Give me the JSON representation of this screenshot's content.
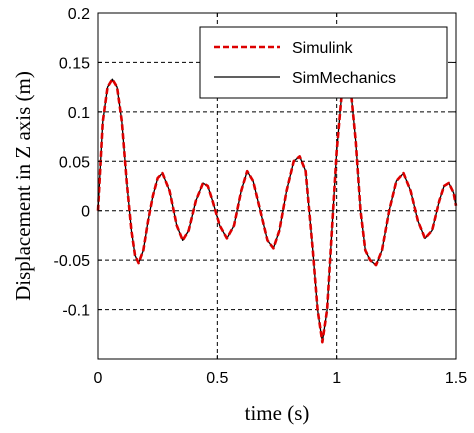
{
  "chart_data": {
    "type": "line",
    "title": "",
    "xlabel": "time (s)",
    "ylabel": "Displacement in Z axis  (m)",
    "xlim": [
      0,
      1.5
    ],
    "ylim": [
      -0.15,
      0.2
    ],
    "x_ticks": [
      0,
      0.5,
      1,
      1.5
    ],
    "x_tick_labels": [
      "0",
      "0.5",
      "1",
      "1.5"
    ],
    "y_ticks": [
      -0.1,
      -0.05,
      0,
      0.05,
      0.1,
      0.15,
      0.2
    ],
    "y_tick_labels": [
      "-0.1",
      "-0.05",
      "0",
      "0.05",
      "0.1",
      "0.15",
      "0.2"
    ],
    "grid": true,
    "grid_style": "dashed",
    "legend_position": "top-right",
    "series": [
      {
        "name": "Simulink",
        "color": "#dd0000",
        "line_style": "dashed",
        "x": [
          0,
          0.02,
          0.04,
          0.06,
          0.08,
          0.1,
          0.12,
          0.14,
          0.155,
          0.17,
          0.19,
          0.21,
          0.23,
          0.25,
          0.27,
          0.3,
          0.33,
          0.355,
          0.38,
          0.41,
          0.44,
          0.46,
          0.48,
          0.51,
          0.54,
          0.57,
          0.6,
          0.625,
          0.65,
          0.68,
          0.71,
          0.735,
          0.76,
          0.79,
          0.82,
          0.845,
          0.87,
          0.9,
          0.92,
          0.94,
          0.96,
          0.98,
          1.0,
          1.02,
          1.04,
          1.06,
          1.08,
          1.1,
          1.12,
          1.14,
          1.165,
          1.19,
          1.22,
          1.25,
          1.28,
          1.31,
          1.34,
          1.37,
          1.4,
          1.43,
          1.45,
          1.47,
          1.49,
          1.5
        ],
        "y": [
          0.0,
          0.09,
          0.125,
          0.133,
          0.125,
          0.09,
          0.03,
          -0.02,
          -0.045,
          -0.053,
          -0.04,
          -0.01,
          0.015,
          0.033,
          0.038,
          0.02,
          -0.015,
          -0.03,
          -0.02,
          0.01,
          0.028,
          0.025,
          0.01,
          -0.015,
          -0.028,
          -0.015,
          0.02,
          0.04,
          0.03,
          0.0,
          -0.03,
          -0.038,
          -0.02,
          0.02,
          0.05,
          0.055,
          0.04,
          -0.04,
          -0.1,
          -0.133,
          -0.1,
          -0.02,
          0.06,
          0.115,
          0.13,
          0.12,
          0.07,
          0.0,
          -0.04,
          -0.05,
          -0.055,
          -0.04,
          0.0,
          0.03,
          0.038,
          0.02,
          -0.01,
          -0.028,
          -0.02,
          0.01,
          0.025,
          0.028,
          0.018,
          0.005
        ]
      },
      {
        "name": "SimMechanics",
        "color": "#000000",
        "line_style": "solid",
        "x": [
          0,
          0.02,
          0.04,
          0.06,
          0.08,
          0.1,
          0.12,
          0.14,
          0.155,
          0.17,
          0.19,
          0.21,
          0.23,
          0.25,
          0.27,
          0.3,
          0.33,
          0.355,
          0.38,
          0.41,
          0.44,
          0.46,
          0.48,
          0.51,
          0.54,
          0.57,
          0.6,
          0.625,
          0.65,
          0.68,
          0.71,
          0.735,
          0.76,
          0.79,
          0.82,
          0.845,
          0.87,
          0.9,
          0.92,
          0.94,
          0.96,
          0.98,
          1.0,
          1.02,
          1.04,
          1.06,
          1.08,
          1.1,
          1.12,
          1.14,
          1.165,
          1.19,
          1.22,
          1.25,
          1.28,
          1.31,
          1.34,
          1.37,
          1.4,
          1.43,
          1.45,
          1.47,
          1.49,
          1.5
        ],
        "y": [
          0.0,
          0.09,
          0.125,
          0.133,
          0.125,
          0.09,
          0.03,
          -0.02,
          -0.045,
          -0.053,
          -0.04,
          -0.01,
          0.015,
          0.033,
          0.038,
          0.02,
          -0.015,
          -0.03,
          -0.02,
          0.01,
          0.028,
          0.025,
          0.01,
          -0.015,
          -0.028,
          -0.015,
          0.02,
          0.04,
          0.03,
          0.0,
          -0.03,
          -0.038,
          -0.02,
          0.02,
          0.05,
          0.055,
          0.04,
          -0.04,
          -0.1,
          -0.133,
          -0.1,
          -0.02,
          0.06,
          0.115,
          0.13,
          0.12,
          0.07,
          0.0,
          -0.04,
          -0.05,
          -0.055,
          -0.04,
          0.0,
          0.03,
          0.038,
          0.02,
          -0.01,
          -0.028,
          -0.02,
          0.01,
          0.025,
          0.028,
          0.018,
          0.005
        ]
      }
    ]
  }
}
